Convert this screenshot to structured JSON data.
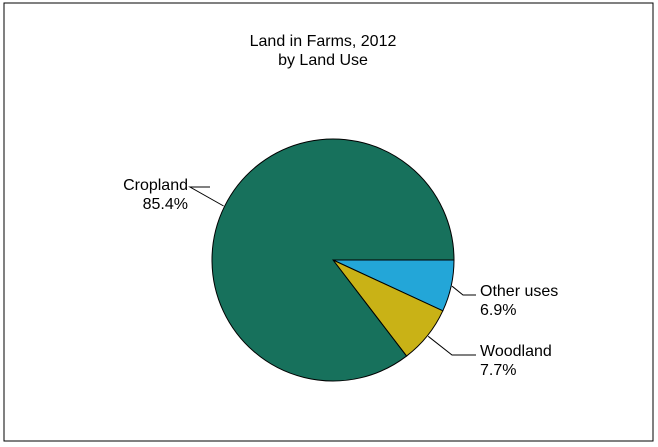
{
  "chart_data": {
    "type": "pie",
    "title": "Land in Farms, 2012",
    "subtitle": "by Land Use",
    "categories": [
      "Cropland",
      "Woodland",
      "Other uses"
    ],
    "values": [
      85.4,
      7.7,
      6.9
    ],
    "value_labels": [
      "85.4%",
      "7.7%",
      "6.9%"
    ],
    "colors": [
      "#17715c",
      "#c9b216",
      "#23a6d8"
    ],
    "legend": "none"
  }
}
